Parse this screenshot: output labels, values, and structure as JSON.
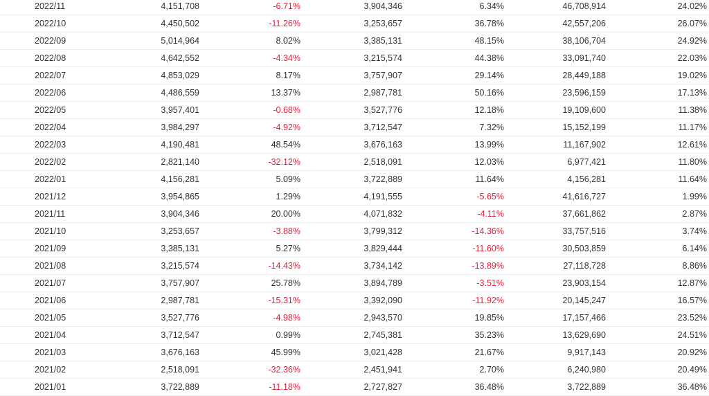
{
  "colors": {
    "negative": "#e8213d",
    "text": "#333333",
    "divider": "#ececec"
  },
  "rows": [
    {
      "month": "2022/11",
      "v1": "4,151,708",
      "p1": "-6.71%",
      "v2": "3,904,346",
      "p2": "6.34%",
      "v3": "46,708,914",
      "p3": "24.02%"
    },
    {
      "month": "2022/10",
      "v1": "4,450,502",
      "p1": "-11.26%",
      "v2": "3,253,657",
      "p2": "36.78%",
      "v3": "42,557,206",
      "p3": "26.07%"
    },
    {
      "month": "2022/09",
      "v1": "5,014,964",
      "p1": "8.02%",
      "v2": "3,385,131",
      "p2": "48.15%",
      "v3": "38,106,704",
      "p3": "24.92%"
    },
    {
      "month": "2022/08",
      "v1": "4,642,552",
      "p1": "-4.34%",
      "v2": "3,215,574",
      "p2": "44.38%",
      "v3": "33,091,740",
      "p3": "22.03%"
    },
    {
      "month": "2022/07",
      "v1": "4,853,029",
      "p1": "8.17%",
      "v2": "3,757,907",
      "p2": "29.14%",
      "v3": "28,449,188",
      "p3": "19.02%"
    },
    {
      "month": "2022/06",
      "v1": "4,486,559",
      "p1": "13.37%",
      "v2": "2,987,781",
      "p2": "50.16%",
      "v3": "23,596,159",
      "p3": "17.13%"
    },
    {
      "month": "2022/05",
      "v1": "3,957,401",
      "p1": "-0.68%",
      "v2": "3,527,776",
      "p2": "12.18%",
      "v3": "19,109,600",
      "p3": "11.38%"
    },
    {
      "month": "2022/04",
      "v1": "3,984,297",
      "p1": "-4.92%",
      "v2": "3,712,547",
      "p2": "7.32%",
      "v3": "15,152,199",
      "p3": "11.17%"
    },
    {
      "month": "2022/03",
      "v1": "4,190,481",
      "p1": "48.54%",
      "v2": "3,676,163",
      "p2": "13.99%",
      "v3": "11,167,902",
      "p3": "12.61%"
    },
    {
      "month": "2022/02",
      "v1": "2,821,140",
      "p1": "-32.12%",
      "v2": "2,518,091",
      "p2": "12.03%",
      "v3": "6,977,421",
      "p3": "11.80%"
    },
    {
      "month": "2022/01",
      "v1": "4,156,281",
      "p1": "5.09%",
      "v2": "3,722,889",
      "p2": "11.64%",
      "v3": "4,156,281",
      "p3": "11.64%"
    },
    {
      "month": "2021/12",
      "v1": "3,954,865",
      "p1": "1.29%",
      "v2": "4,191,555",
      "p2": "-5.65%",
      "v3": "41,616,727",
      "p3": "1.99%"
    },
    {
      "month": "2021/11",
      "v1": "3,904,346",
      "p1": "20.00%",
      "v2": "4,071,832",
      "p2": "-4.11%",
      "v3": "37,661,862",
      "p3": "2.87%"
    },
    {
      "month": "2021/10",
      "v1": "3,253,657",
      "p1": "-3.88%",
      "v2": "3,799,312",
      "p2": "-14.36%",
      "v3": "33,757,516",
      "p3": "3.74%"
    },
    {
      "month": "2021/09",
      "v1": "3,385,131",
      "p1": "5.27%",
      "v2": "3,829,444",
      "p2": "-11.60%",
      "v3": "30,503,859",
      "p3": "6.14%"
    },
    {
      "month": "2021/08",
      "v1": "3,215,574",
      "p1": "-14.43%",
      "v2": "3,734,142",
      "p2": "-13.89%",
      "v3": "27,118,728",
      "p3": "8.86%"
    },
    {
      "month": "2021/07",
      "v1": "3,757,907",
      "p1": "25.78%",
      "v2": "3,894,789",
      "p2": "-3.51%",
      "v3": "23,903,154",
      "p3": "12.87%"
    },
    {
      "month": "2021/06",
      "v1": "2,987,781",
      "p1": "-15.31%",
      "v2": "3,392,090",
      "p2": "-11.92%",
      "v3": "20,145,247",
      "p3": "16.57%"
    },
    {
      "month": "2021/05",
      "v1": "3,527,776",
      "p1": "-4.98%",
      "v2": "2,943,570",
      "p2": "19.85%",
      "v3": "17,157,466",
      "p3": "23.52%"
    },
    {
      "month": "2021/04",
      "v1": "3,712,547",
      "p1": "0.99%",
      "v2": "2,745,381",
      "p2": "35.23%",
      "v3": "13,629,690",
      "p3": "24.51%"
    },
    {
      "month": "2021/03",
      "v1": "3,676,163",
      "p1": "45.99%",
      "v2": "3,021,428",
      "p2": "21.67%",
      "v3": "9,917,143",
      "p3": "20.92%"
    },
    {
      "month": "2021/02",
      "v1": "2,518,091",
      "p1": "-32.36%",
      "v2": "2,451,941",
      "p2": "2.70%",
      "v3": "6,240,980",
      "p3": "20.49%"
    },
    {
      "month": "2021/01",
      "v1": "3,722,889",
      "p1": "-11.18%",
      "v2": "2,727,827",
      "p2": "36.48%",
      "v3": "3,722,889",
      "p3": "36.48%"
    }
  ]
}
